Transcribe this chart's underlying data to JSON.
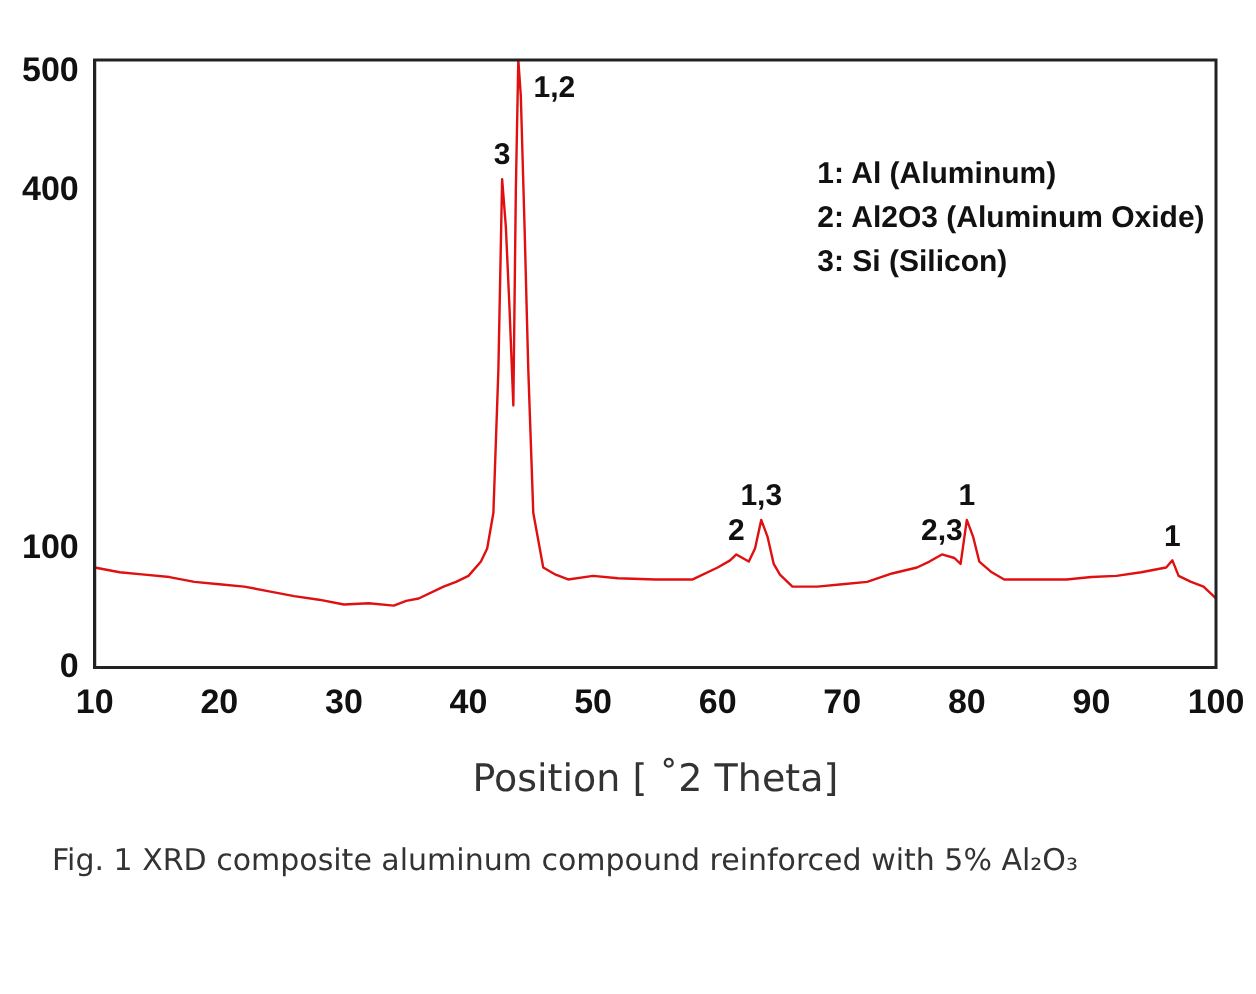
{
  "chart_data": {
    "type": "line",
    "xlabel": "Position [ ˚2 Theta]",
    "series": [
      {
        "color": "#e01010",
        "x": [
          10,
          12,
          14,
          16,
          18,
          20,
          22,
          24,
          26,
          28,
          30,
          32,
          34,
          35,
          36,
          38,
          39,
          40,
          41,
          41.5,
          42,
          42.4,
          42.7,
          43.0,
          43.3,
          43.6,
          43.8,
          44.0,
          44.2,
          44.5,
          44.8,
          45.2,
          46,
          47,
          48,
          50,
          52,
          55,
          58,
          60,
          61,
          61.5,
          62,
          62.5,
          63,
          63.5,
          64,
          64.5,
          65,
          66,
          68,
          70,
          72,
          74,
          76,
          77,
          78,
          79,
          79.5,
          80,
          80.5,
          81,
          82,
          83,
          85,
          88,
          90,
          92,
          94,
          96,
          96.5,
          97,
          98,
          99,
          100
        ],
        "values": [
          84,
          80,
          78,
          76,
          72,
          70,
          68,
          64,
          60,
          57,
          53,
          54,
          52,
          56,
          58,
          68,
          72,
          77,
          89,
          100,
          130,
          250,
          410,
          370,
          300,
          220,
          400,
          510,
          480,
          370,
          250,
          130,
          84,
          78,
          74,
          77,
          75,
          74,
          74,
          84,
          90,
          95,
          92,
          89,
          100,
          124,
          110,
          87,
          78,
          68,
          68,
          70,
          72,
          79,
          84,
          89,
          95,
          92,
          87,
          124,
          110,
          89,
          80,
          74,
          74,
          74,
          76,
          77,
          80,
          84,
          90,
          77,
          72,
          68,
          58
        ]
      }
    ],
    "xlim": [
      10,
      100
    ],
    "xticks": [
      10,
      20,
      30,
      40,
      50,
      60,
      70,
      80,
      90,
      100
    ],
    "ylim": [
      0,
      510
    ],
    "yticks": [
      0,
      100,
      400,
      500
    ],
    "grid": false,
    "legend": false,
    "marker": "none",
    "line_style": "solid",
    "annotations": [
      {
        "text": "1,2",
        "x": 44.0,
        "y": 510
      },
      {
        "text": "3",
        "x": 42.7,
        "y": 410
      },
      {
        "text": "2",
        "x": 61.5,
        "y": 95
      },
      {
        "text": "1,3",
        "x": 63.5,
        "y": 124
      },
      {
        "text": "2,3",
        "x": 78,
        "y": 95
      },
      {
        "text": "1",
        "x": 80,
        "y": 124
      },
      {
        "text": "1",
        "x": 96.5,
        "y": 90
      },
      "1: Al (Aluminum)",
      "2: Al2O3 (Aluminum Oxide)",
      "3: Si (Silicon)",
      "Fig. 1 XRD composite aluminum compound reinforced with 5% Al₂O₃"
    ]
  }
}
